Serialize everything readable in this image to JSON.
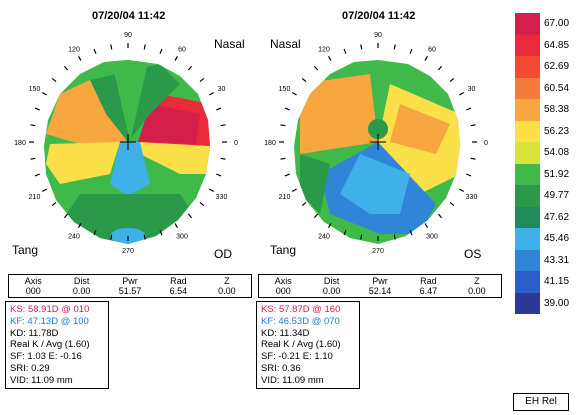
{
  "left": {
    "date": "07/20/04 11:42",
    "corner_tl": "",
    "corner_tr": "Nasal",
    "corner_bl": "Tang",
    "corner_br": "OD",
    "stats": {
      "headers": [
        "Axis",
        "Dist",
        "Pwr",
        "Rad",
        "Z"
      ],
      "values": [
        "000",
        "0.00",
        "51.57",
        "6.54",
        "0.00"
      ]
    },
    "info": {
      "ks": "KS: 58.91D @ 010",
      "kf": "KF: 47.13D @ 100",
      "kd": "KD: 11.78D",
      "real": "Real K / Avg (1.60)",
      "sf": "SF: 1.03  E: -0.16",
      "sri": "SRI:  0.29",
      "vid": "VID: 11.09 mm"
    }
  },
  "right": {
    "date": "07/20/04 11:42",
    "corner_tl": "Nasal",
    "corner_tr": "",
    "corner_bl": "Tang",
    "corner_br": "OS",
    "stats": {
      "headers": [
        "Axis",
        "Dist",
        "Pwr",
        "Rad",
        "Z"
      ],
      "values": [
        "000",
        "0.00",
        "52.14",
        "6.47",
        "0.00"
      ]
    },
    "info": {
      "ks": "KS: 57.87D @ 160",
      "kf": "KF: 46.53D @ 070",
      "kd": "KD: 11.34D",
      "real": "Real K / Avg (1.60)",
      "sf": "SF: -0.21  E: 1.10",
      "sri": "SRI:  0.36",
      "vid": "VID: 11.09 mm"
    }
  },
  "angle_labels": [
    "90",
    "60",
    "30",
    "0",
    "330",
    "300",
    "270",
    "240",
    "210",
    "180",
    "150",
    "120"
  ],
  "scale": {
    "values": [
      "67.00",
      "64.85",
      "62.69",
      "60.54",
      "58.38",
      "56.23",
      "54.08",
      "51.92",
      "49.77",
      "47.62",
      "45.46",
      "43.31",
      "41.15",
      "39.00"
    ],
    "colors": [
      "#d41f4b",
      "#ea2a3a",
      "#f34a35",
      "#f77b3a",
      "#f8a640",
      "#fce04a",
      "#d8e43c",
      "#3fba4a",
      "#2a9a4a",
      "#1f8a5c",
      "#3fb0e8",
      "#2f86d8",
      "#2a5ec8",
      "#2a3898"
    ],
    "button": "EH Rel"
  }
}
